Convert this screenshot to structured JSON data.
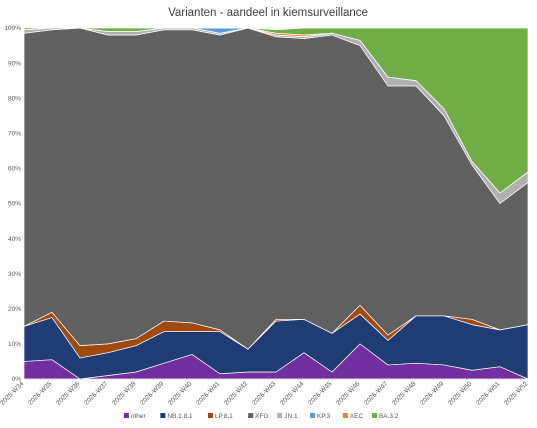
{
  "chart_data": {
    "type": "area",
    "stacked": true,
    "percent": true,
    "title": "Varianten - aandeel in kiemsurveillance",
    "xlabel": "",
    "ylabel": "",
    "ylim": [
      0,
      100
    ],
    "yticks": [
      "0%",
      "10%",
      "20%",
      "30%",
      "40%",
      "50%",
      "60%",
      "70%",
      "80%",
      "90%",
      "100%"
    ],
    "categories": [
      "2025-W34",
      "2025-W35",
      "2025-W36",
      "2025-W37",
      "2025-W38",
      "2025-W39",
      "2025-W40",
      "2025-W41",
      "2025-W42",
      "2025-W43",
      "2025-W44",
      "2025-W45",
      "2025-W46",
      "2025-W47",
      "2025-W48",
      "2025-W49",
      "2025-W50",
      "2025-W51",
      "2025-W52"
    ],
    "shown_tick_labels": [
      "2025-W34",
      "2025-W35",
      "2025-W36",
      "2025-W37",
      "2025-W38",
      "2025-W39",
      "2025-W40",
      "2025-W41",
      "2025-W42",
      "2025-W43",
      "2025-W44",
      "2025-W45",
      "2025-W46",
      "2025-W47",
      "2025-W48",
      "2025-W49",
      "2025-W50",
      "2025-W51",
      "2025-W52"
    ],
    "grid": true,
    "legend_position": "bottom",
    "series": [
      {
        "name": "other",
        "color": "#7030a0",
        "values": [
          5,
          5.5,
          0,
          1,
          2,
          4.5,
          7,
          1.5,
          2,
          2,
          7.5,
          2,
          10,
          4,
          4.5,
          4,
          2.5,
          3.5,
          0
        ]
      },
      {
        "name": "NB.1.8.1",
        "color": "#1f3c74",
        "values": [
          10,
          12,
          6,
          6.5,
          7.5,
          9,
          6.5,
          12,
          6.5,
          14.5,
          9.5,
          11,
          8.5,
          7,
          13.5,
          14,
          13,
          10.5,
          15.5
        ]
      },
      {
        "name": "LP.8.1",
        "color": "#a04a10",
        "values": [
          0,
          1.5,
          3.5,
          2.5,
          2,
          3,
          2.5,
          0.5,
          0,
          0.5,
          0,
          0,
          2.5,
          1.5,
          0,
          0,
          1.5,
          0,
          0
        ]
      },
      {
        "name": "XFG",
        "color": "#606060",
        "values": [
          83.5,
          80.5,
          90.5,
          88,
          86.5,
          83,
          83.5,
          84,
          91.5,
          80.5,
          80,
          85,
          74,
          71,
          65.5,
          57,
          44,
          36,
          40.5
        ]
      },
      {
        "name": "JN.1",
        "color": "#b0b0b0",
        "values": [
          1,
          0.5,
          0,
          1,
          1,
          0.5,
          0.5,
          0.5,
          0,
          0.5,
          0.5,
          0.5,
          1.5,
          2.5,
          1.5,
          2,
          1,
          3,
          3
        ]
      },
      {
        "name": "KP.3",
        "color": "#5b9bd5",
        "values": [
          0,
          0,
          0,
          0,
          0,
          0,
          0,
          1.5,
          0,
          0,
          0,
          0,
          0,
          0,
          0,
          0,
          0,
          0,
          0
        ]
      },
      {
        "name": "XEC",
        "color": "#ed7d31",
        "values": [
          0,
          0,
          0,
          0,
          0,
          0,
          0,
          0,
          0,
          0.5,
          0.5,
          0,
          0,
          0,
          0,
          0,
          0,
          0,
          0
        ]
      },
      {
        "name": "BA.3.2",
        "color": "#70ad47",
        "values": [
          0.5,
          0,
          0,
          1,
          1,
          0,
          0,
          0,
          0,
          1,
          2,
          1.5,
          3.5,
          14,
          15,
          23,
          38,
          47,
          41
        ]
      }
    ]
  }
}
